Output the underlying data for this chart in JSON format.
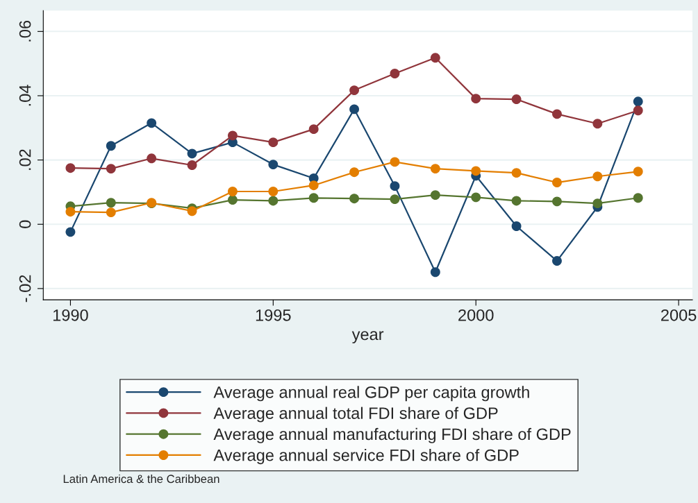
{
  "chart_data": {
    "type": "line",
    "xlabel": "year",
    "x": [
      1990,
      1991,
      1992,
      1993,
      1994,
      1995,
      1996,
      1997,
      1998,
      1999,
      2000,
      2001,
      2002,
      2003,
      2004
    ],
    "series": [
      {
        "name": "Average annual real GDP per capita growth",
        "color": "#1a476f",
        "values": [
          -0.0024,
          0.0244,
          0.0315,
          0.022,
          0.0255,
          0.0186,
          0.0143,
          0.0358,
          0.0119,
          -0.0149,
          0.0151,
          -0.0006,
          -0.0114,
          0.0054,
          0.0382
        ]
      },
      {
        "name": "Average annual total FDI share of GDP",
        "color": "#90353b",
        "values": [
          0.0175,
          0.0173,
          0.0205,
          0.0184,
          0.0276,
          0.0255,
          0.0296,
          0.0417,
          0.0469,
          0.0518,
          0.0391,
          0.0389,
          0.0343,
          0.0313,
          0.0354
        ]
      },
      {
        "name": "Average annual manufacturing FDI share of GDP",
        "color": "#55752f",
        "values": [
          0.0056,
          0.0067,
          0.0065,
          0.005,
          0.0076,
          0.0073,
          0.0082,
          0.008,
          0.0078,
          0.0091,
          0.0084,
          0.0073,
          0.0071,
          0.0065,
          0.0082
        ]
      },
      {
        "name": "Average annual service FDI share of GDP",
        "color": "#e37e00",
        "values": [
          0.0039,
          0.0037,
          0.0067,
          0.0041,
          0.0102,
          0.0102,
          0.0121,
          0.0162,
          0.0194,
          0.0173,
          0.0166,
          0.016,
          0.013,
          0.0149,
          0.0164
        ]
      }
    ],
    "xlim": [
      1989.33,
      2005.34
    ],
    "xticks": [
      1990,
      1995,
      2000,
      2005
    ],
    "ylim": [
      -0.0235,
      0.0665
    ],
    "yticks": [
      {
        "value": -0.02,
        "label": "-.02"
      },
      {
        "value": 0,
        "label": "0"
      },
      {
        "value": 0.02,
        "label": ".02"
      },
      {
        "value": 0.04,
        "label": ".04"
      },
      {
        "value": 0.06,
        "label": ".06"
      }
    ],
    "grid": "y",
    "legend": "bottom",
    "marker": "circle",
    "line_style": "solid",
    "annotations": [
      "Latin America & the Caribbean"
    ]
  }
}
